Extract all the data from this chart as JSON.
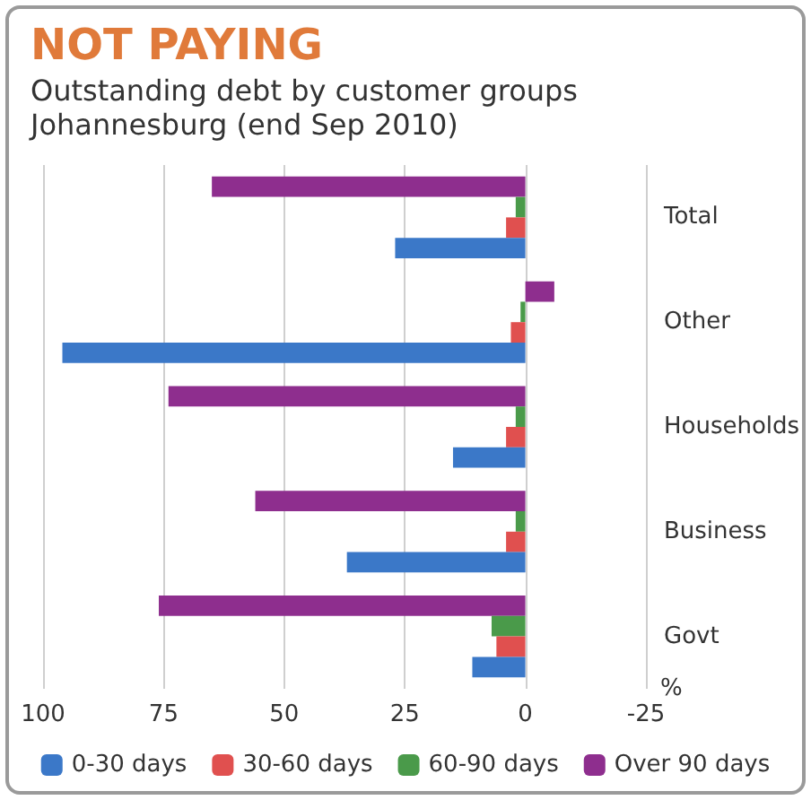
{
  "chart_data": {
    "type": "bar",
    "orientation": "horizontal",
    "title": "NOT PAYING",
    "subtitle": "Outstanding debt by customer groups\nJohannesburg (end Sep 2010)",
    "xlabel": "%",
    "categories": [
      "Total",
      "Other",
      "Households",
      "Business",
      "Govt"
    ],
    "series": [
      {
        "name": "0-30 days",
        "color": "#3b78c8",
        "values": [
          27,
          96,
          15,
          37,
          11
        ]
      },
      {
        "name": "30-60 days",
        "color": "#e0504f",
        "values": [
          4,
          3,
          4,
          4,
          6
        ]
      },
      {
        "name": "60-90 days",
        "color": "#4a9a4a",
        "values": [
          2,
          1,
          2,
          2,
          7
        ]
      },
      {
        "name": "Over 90 days",
        "color": "#8e2e8e",
        "values": [
          65,
          -6,
          74,
          56,
          76
        ]
      }
    ],
    "xlim": [
      100,
      -25
    ],
    "xticks": [
      100,
      75,
      50,
      25,
      0,
      -25
    ],
    "grid": "x",
    "legend": "bottom"
  }
}
